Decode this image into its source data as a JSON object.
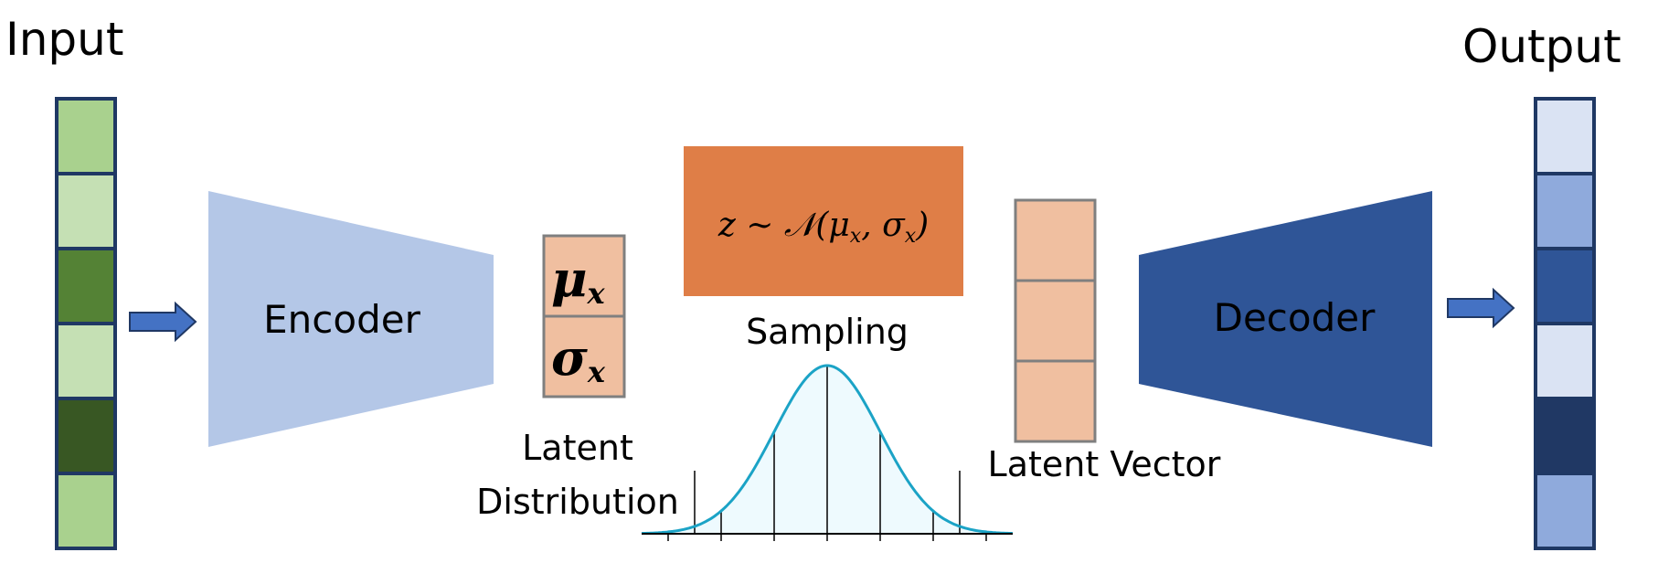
{
  "labels": {
    "input": "Input",
    "output": "Output",
    "encoder": "Encoder",
    "decoder": "Decoder",
    "sampling": "Sampling",
    "latent_distribution_line1": "Latent",
    "latent_distribution_line2": "Distribution",
    "latent_vector": "Latent Vector"
  },
  "math": {
    "mu": "μ",
    "sigma": "σ",
    "subscript": "x",
    "sampling_formula": "z ∼ 𝒩(μ",
    "formula_sub1": "x",
    "formula_mid": ", σ",
    "formula_sub2": "x",
    "formula_end": ")"
  },
  "colors": {
    "input_cells": [
      "#a9d18e",
      "#c5e0b4",
      "#548235",
      "#c5e0b4",
      "#385723",
      "#a9d18e"
    ],
    "output_cells": [
      "#dae3f3",
      "#8faadc",
      "#2f5597",
      "#dae3f3",
      "#203864",
      "#8faadc"
    ],
    "vector_border": "#1f3864",
    "encoder": "#b4c7e7",
    "decoder": "#2f5597",
    "arrow_fill": "#4472c4",
    "arrow_stroke": "#203864",
    "latent_fill": "#f0bfa0",
    "latent_border": "#7f7f7f",
    "sampling_box": "#df7e47",
    "curve_line": "#1ba3c6",
    "curve_fill": "#eefafe"
  }
}
